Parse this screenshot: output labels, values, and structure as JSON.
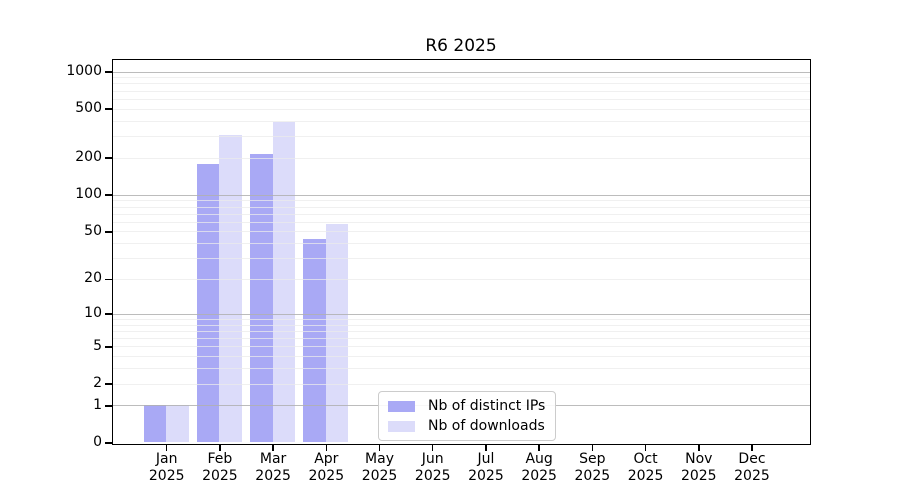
{
  "title": "R6 2025",
  "chart_data": {
    "type": "bar",
    "title": "R6 2025",
    "x_months": [
      "Jan",
      "Feb",
      "Mar",
      "Apr",
      "May",
      "Jun",
      "Jul",
      "Aug",
      "Sep",
      "Oct",
      "Nov",
      "Dec"
    ],
    "x_year": "2025",
    "yscale": "log10(value+1)",
    "ylim": [
      0,
      1250
    ],
    "ytick_labels": [
      0,
      1,
      2,
      5,
      10,
      20,
      50,
      100,
      200,
      500,
      1000
    ],
    "major_gridlines": [
      1,
      10,
      100,
      1000
    ],
    "minor_gridlines": [
      2,
      3,
      4,
      5,
      6,
      7,
      8,
      9,
      20,
      30,
      40,
      50,
      60,
      70,
      80,
      90,
      200,
      300,
      400,
      500,
      600,
      700,
      800,
      900
    ],
    "grid": true,
    "legend_position": "lower center",
    "series": [
      {
        "name": "Nb of distinct IPs",
        "color": "#a9a9f5",
        "values": [
          1,
          178,
          213,
          43,
          0,
          0,
          0,
          0,
          0,
          0,
          0,
          0
        ]
      },
      {
        "name": "Nb of downloads",
        "color": "#dcdcfa",
        "values": [
          1,
          307,
          391,
          57,
          0,
          0,
          0,
          0,
          0,
          0,
          0,
          0
        ]
      }
    ]
  },
  "colors": {
    "spine": "#000000",
    "major_grid": "#b0b0b0",
    "minor_grid": "#ebebeb",
    "background": "#ffffff"
  }
}
